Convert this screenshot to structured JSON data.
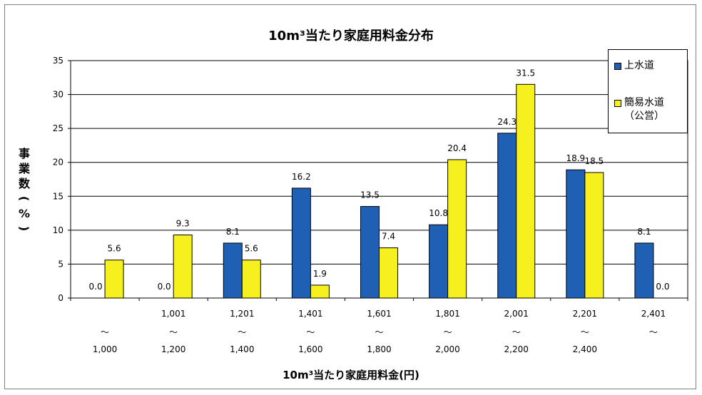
{
  "chart_data": {
    "type": "bar",
    "title": "10m³当たり家庭用料金分布",
    "xlabel": "10m³当たり家庭用料金(円)",
    "ylabel": "事業数(%)",
    "ylim": [
      0,
      35
    ],
    "yticks": [
      0,
      5,
      10,
      15,
      20,
      25,
      30,
      35
    ],
    "grid": true,
    "legend_position": "top-right",
    "categories": [
      {
        "from": "",
        "tilde": "～",
        "to": "1,000"
      },
      {
        "from": "1,001",
        "tilde": "～",
        "to": "1,200"
      },
      {
        "from": "1,201",
        "tilde": "～",
        "to": "1,400"
      },
      {
        "from": "1,401",
        "tilde": "～",
        "to": "1,600"
      },
      {
        "from": "1,601",
        "tilde": "～",
        "to": "1,800"
      },
      {
        "from": "1,801",
        "tilde": "～",
        "to": "2,000"
      },
      {
        "from": "2,001",
        "tilde": "～",
        "to": "2,200"
      },
      {
        "from": "2,201",
        "tilde": "～",
        "to": "2,400"
      },
      {
        "from": "2,401",
        "tilde": "～",
        "to": ""
      }
    ],
    "series": [
      {
        "name": "上水道",
        "color": "#1f5fb4",
        "values": [
          0.0,
          0.0,
          8.1,
          16.2,
          13.5,
          10.8,
          24.3,
          18.9,
          8.1
        ],
        "labels": [
          "0.0",
          "0.0",
          "8.1",
          "16.2",
          "13.5",
          "10.8",
          "24.3",
          "18.9",
          "8.1"
        ]
      },
      {
        "name": "簡易水道\n（公営）",
        "color": "#f5f01e",
        "values": [
          5.6,
          9.3,
          5.6,
          1.9,
          7.4,
          20.4,
          31.5,
          18.5,
          0.0
        ],
        "labels": [
          "5.6",
          "9.3",
          "5.6",
          "1.9",
          "7.4",
          "20.4",
          "31.5",
          "18.5",
          "0.0"
        ]
      }
    ]
  }
}
